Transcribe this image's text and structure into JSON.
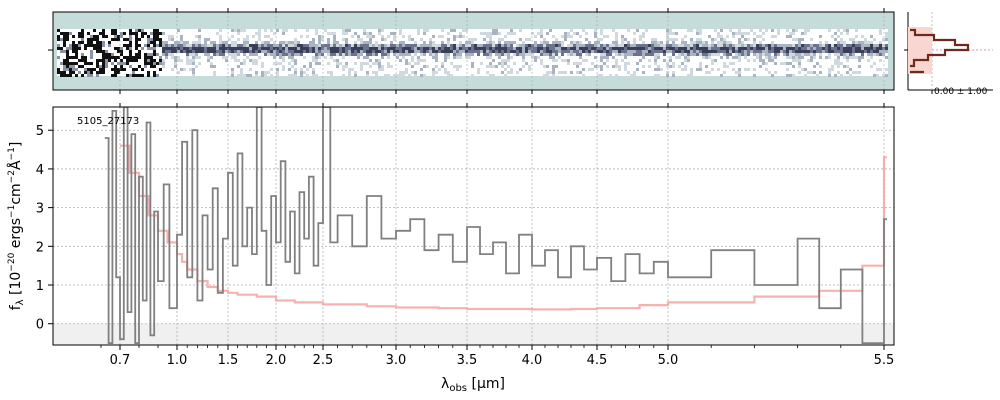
{
  "chart_data": {
    "type": "line",
    "object_id": "5105_27173",
    "xlabel_html": "λ<tspan font-size='10' dy='3'>obs</tspan><tspan dy='-3'> [μm]</tspan>",
    "xlabel_text": "λobs [μm]",
    "ylabel_text": "fλ [10^-20 ergs^-1cm^-2Å^-1]",
    "x_tick_labels": [
      "0.7",
      "1.0",
      "1.5",
      "2.0",
      "2.5",
      "3.0",
      "3.5",
      "4.0",
      "4.5",
      "5.0",
      "5.5"
    ],
    "x_tick_values": [
      0.7,
      1.0,
      1.5,
      2.0,
      2.5,
      3.0,
      3.5,
      4.0,
      4.5,
      5.0,
      5.5
    ],
    "y_tick_labels": [
      "0",
      "1",
      "2",
      "3",
      "4",
      "5"
    ],
    "y_tick_values": [
      0,
      1,
      2,
      3,
      4,
      5
    ],
    "ylim": [
      -0.55,
      5.6
    ],
    "grid": true,
    "profile_annotation": "0.00 ± 1.00",
    "series": [
      {
        "color": "#808080",
        "x": [
          0.62,
          0.64,
          0.66,
          0.68,
          0.7,
          0.72,
          0.74,
          0.76,
          0.78,
          0.8,
          0.82,
          0.84,
          0.86,
          0.88,
          0.9,
          0.93,
          0.96,
          1.0,
          1.05,
          1.1,
          1.15,
          1.2,
          1.25,
          1.3,
          1.35,
          1.4,
          1.45,
          1.5,
          1.55,
          1.6,
          1.65,
          1.7,
          1.75,
          1.8,
          1.85,
          1.9,
          1.95,
          2.0,
          2.05,
          2.1,
          2.15,
          2.2,
          2.25,
          2.3,
          2.35,
          2.4,
          2.45,
          2.5,
          2.55,
          2.6,
          2.7,
          2.8,
          2.9,
          3.0,
          3.1,
          3.2,
          3.3,
          3.4,
          3.5,
          3.6,
          3.7,
          3.8,
          3.9,
          4.0,
          4.1,
          4.2,
          4.3,
          4.4,
          4.5,
          4.6,
          4.7,
          4.8,
          4.9,
          5.0,
          5.1,
          5.2,
          5.3,
          5.35,
          5.4,
          5.45,
          5.5
        ],
        "y": [
          4.8,
          -0.5,
          5.5,
          1.2,
          -0.4,
          5.6,
          0.3,
          4.9,
          -0.5,
          3.8,
          0.6,
          5.2,
          -0.3,
          2.9,
          1.1,
          3.6,
          0.4,
          2.3,
          4.7,
          1.2,
          5.0,
          0.6,
          2.8,
          1.4,
          3.5,
          0.8,
          2.2,
          3.9,
          1.5,
          4.4,
          2.0,
          3.0,
          1.8,
          5.6,
          2.4,
          1.0,
          3.3,
          2.1,
          4.2,
          1.6,
          2.9,
          1.3,
          3.4,
          2.2,
          3.8,
          1.5,
          2.6,
          5.6,
          2.1,
          2.8,
          2.0,
          3.3,
          2.2,
          2.4,
          2.7,
          1.9,
          2.3,
          1.6,
          2.5,
          1.8,
          2.1,
          1.3,
          2.3,
          1.5,
          1.9,
          1.2,
          2.0,
          1.4,
          1.7,
          1.1,
          1.8,
          1.3,
          1.6,
          1.2,
          1.9,
          1.0,
          2.2,
          0.4,
          1.4,
          -0.5,
          2.7
        ]
      },
      {
        "color": "#f4a3a3",
        "x": [
          0.7,
          0.75,
          0.8,
          0.85,
          0.9,
          0.95,
          1.0,
          1.05,
          1.1,
          1.2,
          1.3,
          1.4,
          1.5,
          1.6,
          1.8,
          2.0,
          2.2,
          2.5,
          2.8,
          3.0,
          3.3,
          3.5,
          3.8,
          4.0,
          4.3,
          4.5,
          4.8,
          5.0,
          5.2,
          5.35,
          5.45,
          5.5
        ],
        "y": [
          4.6,
          3.9,
          3.3,
          2.8,
          2.4,
          2.1,
          1.8,
          1.6,
          1.4,
          1.1,
          0.95,
          0.85,
          0.8,
          0.75,
          0.7,
          0.6,
          0.55,
          0.5,
          0.45,
          0.42,
          0.4,
          0.38,
          0.38,
          0.37,
          0.38,
          0.4,
          0.48,
          0.55,
          0.7,
          0.85,
          1.5,
          4.3
        ]
      }
    ]
  },
  "colors": {
    "panel_bg": "#c6dcda",
    "noise_dark": "#111111",
    "trace": "#3a3f58",
    "profile_fill": "#f9d6d0",
    "profile_line": "#6e2a1a",
    "zero_band": "#f0f0f0"
  }
}
